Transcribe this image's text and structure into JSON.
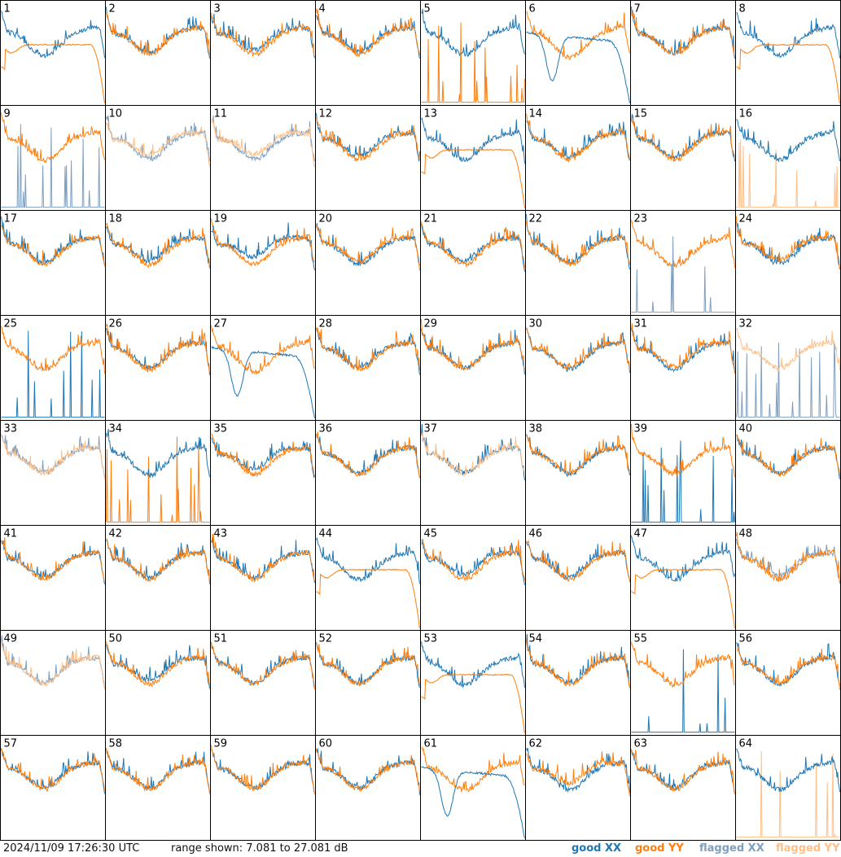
{
  "footer": {
    "timestamp": "2024/11/09 17:26:30 UTC",
    "range_text": "range shown: 7.081 to 27.081 dB",
    "legend": [
      {
        "label": "good XX",
        "color": "#1f77b4"
      },
      {
        "label": "good YY",
        "color": "#ff7f0e"
      },
      {
        "label": "flagged XX",
        "color": "#7f9fbf"
      },
      {
        "label": "flagged YY",
        "color": "#ffbf87"
      }
    ]
  },
  "chart_data": {
    "type": "line",
    "grid_rows": 8,
    "grid_cols": 8,
    "y_range_db": [
      7.081,
      27.081
    ],
    "colors": {
      "good_xx": "#1f77b4",
      "good_yy": "#ff7f0e",
      "flagged_xx": "#7f9fbf",
      "flagged_yy": "#ffbf87"
    },
    "panels": [
      {
        "label": "1",
        "xx": {
          "p": "n",
          "s": "g",
          "b": 0,
          "d": 0.5
        },
        "yy": {
          "p": "d",
          "s": "g",
          "b": 0,
          "d": -0.3
        },
        "top": "y"
      },
      {
        "label": "2",
        "xx": {
          "p": "n",
          "s": "g",
          "b": 0,
          "d": 0
        },
        "yy": {
          "p": "n",
          "s": "g",
          "b": 0,
          "d": 0.2
        },
        "top": "y"
      },
      {
        "label": "3",
        "xx": {
          "p": "n",
          "s": "g",
          "b": 0,
          "d": -0.4
        },
        "yy": {
          "p": "n",
          "s": "g",
          "b": 0,
          "d": 0.2
        },
        "top": "y"
      },
      {
        "label": "4",
        "xx": {
          "p": "n",
          "s": "g",
          "b": 0,
          "d": -0.2
        },
        "yy": {
          "p": "n",
          "s": "g",
          "b": 0,
          "d": 0.2
        },
        "top": "y"
      },
      {
        "label": "5",
        "xx": {
          "p": "n",
          "s": "g",
          "b": 0,
          "d": 0.3
        },
        "yy": {
          "p": "s",
          "s": "g",
          "b": 0,
          "d": 0
        },
        "top": "y"
      },
      {
        "label": "6",
        "xx": {
          "p": "f",
          "s": "g",
          "b": 0,
          "d": 0
        },
        "yy": {
          "p": "n",
          "s": "g",
          "b": 0,
          "d": 0.6
        },
        "top": "x"
      },
      {
        "label": "7",
        "xx": {
          "p": "n",
          "s": "g",
          "b": 0,
          "d": 0
        },
        "yy": {
          "p": "n",
          "s": "g",
          "b": 0,
          "d": 0.2
        },
        "top": "y"
      },
      {
        "label": "8",
        "xx": {
          "p": "n",
          "s": "g",
          "b": 0,
          "d": 0.3
        },
        "yy": {
          "p": "d",
          "s": "g",
          "b": 0,
          "d": 0
        },
        "top": "y"
      },
      {
        "label": "9",
        "xx": {
          "p": "s",
          "s": "f",
          "b": 0,
          "d": 0
        },
        "yy": {
          "p": "n",
          "s": "g",
          "b": 0,
          "d": 0.4
        },
        "top": "y"
      },
      {
        "label": "10",
        "xx": {
          "p": "n",
          "s": "f",
          "b": 0,
          "d": 0.2
        },
        "yy": {
          "p": "n",
          "s": "f",
          "b": 0,
          "d": -0.4
        },
        "top": "y"
      },
      {
        "label": "11",
        "xx": {
          "p": "n",
          "s": "f",
          "b": 0,
          "d": 0.2
        },
        "yy": {
          "p": "n",
          "s": "f",
          "b": 0,
          "d": -0.5
        },
        "top": "y"
      },
      {
        "label": "12",
        "xx": {
          "p": "n",
          "s": "g",
          "b": 0,
          "d": -0.3
        },
        "yy": {
          "p": "n",
          "s": "g",
          "b": 0,
          "d": 0.3
        },
        "top": "y"
      },
      {
        "label": "13",
        "xx": {
          "p": "n",
          "s": "g",
          "b": 0,
          "d": 0.3
        },
        "yy": {
          "p": "d",
          "s": "g",
          "b": 0,
          "d": 0
        },
        "top": "y"
      },
      {
        "label": "14",
        "xx": {
          "p": "n",
          "s": "g",
          "b": 0,
          "d": 0
        },
        "yy": {
          "p": "n",
          "s": "g",
          "b": 0,
          "d": 0.2
        },
        "top": "y"
      },
      {
        "label": "15",
        "xx": {
          "p": "n",
          "s": "g",
          "b": 0,
          "d": 0
        },
        "yy": {
          "p": "n",
          "s": "g",
          "b": 0,
          "d": 0.3
        },
        "top": "y"
      },
      {
        "label": "16",
        "xx": {
          "p": "n",
          "s": "g",
          "b": 0,
          "d": 0.3
        },
        "yy": {
          "p": "s",
          "s": "f",
          "b": 0,
          "d": 0
        },
        "top": "x"
      },
      {
        "label": "17",
        "xx": {
          "p": "n",
          "s": "g",
          "b": 0,
          "d": 0
        },
        "yy": {
          "p": "n",
          "s": "g",
          "b": 0,
          "d": 0.2
        },
        "top": "y"
      },
      {
        "label": "18",
        "xx": {
          "p": "n",
          "s": "g",
          "b": 0,
          "d": -0.3
        },
        "yy": {
          "p": "n",
          "s": "g",
          "b": 0,
          "d": 0.3
        },
        "top": "y"
      },
      {
        "label": "19",
        "xx": {
          "p": "n",
          "s": "g",
          "b": 0,
          "d": -0.9
        },
        "yy": {
          "p": "n",
          "s": "g",
          "b": 0,
          "d": 0.2
        },
        "top": "y"
      },
      {
        "label": "20",
        "xx": {
          "p": "n",
          "s": "g",
          "b": 0,
          "d": 0.2
        },
        "yy": {
          "p": "n",
          "s": "g",
          "b": 0,
          "d": -0.2
        },
        "top": "y"
      },
      {
        "label": "21",
        "xx": {
          "p": "n",
          "s": "g",
          "b": 0,
          "d": -0.3
        },
        "yy": {
          "p": "n",
          "s": "g",
          "b": 0,
          "d": 0.2
        },
        "top": "y"
      },
      {
        "label": "22",
        "xx": {
          "p": "n",
          "s": "g",
          "b": 0,
          "d": 0
        },
        "yy": {
          "p": "n",
          "s": "g",
          "b": 0,
          "d": 0.2
        },
        "top": "y"
      },
      {
        "label": "23",
        "xx": {
          "p": "s",
          "s": "f",
          "b": 0,
          "d": 0
        },
        "yy": {
          "p": "n",
          "s": "g",
          "b": 0,
          "d": 0.5
        },
        "top": "x"
      },
      {
        "label": "24",
        "xx": {
          "p": "n",
          "s": "g",
          "b": 0,
          "d": 0.2
        },
        "yy": {
          "p": "n",
          "s": "g",
          "b": 0,
          "d": -0.4
        },
        "top": "y"
      },
      {
        "label": "25",
        "xx": {
          "p": "s",
          "s": "g",
          "b": 0,
          "d": 0
        },
        "yy": {
          "p": "n",
          "s": "g",
          "b": 0,
          "d": 0.3
        },
        "top": "y"
      },
      {
        "label": "26",
        "xx": {
          "p": "n",
          "s": "g",
          "b": 0,
          "d": 0
        },
        "yy": {
          "p": "n",
          "s": "g",
          "b": 0,
          "d": 0.3
        },
        "top": "y"
      },
      {
        "label": "27",
        "xx": {
          "p": "f",
          "s": "g",
          "b": 0,
          "d": -0.3
        },
        "yy": {
          "p": "n",
          "s": "g",
          "b": 0,
          "d": 0.6
        },
        "top": "y"
      },
      {
        "label": "28",
        "xx": {
          "p": "n",
          "s": "g",
          "b": 0,
          "d": 0
        },
        "yy": {
          "p": "n",
          "s": "g",
          "b": 0,
          "d": 0.2
        },
        "top": "y"
      },
      {
        "label": "29",
        "xx": {
          "p": "n",
          "s": "g",
          "b": 0,
          "d": 0
        },
        "yy": {
          "p": "n",
          "s": "g",
          "b": 0,
          "d": 0.2
        },
        "top": "y"
      },
      {
        "label": "30",
        "xx": {
          "p": "n",
          "s": "g",
          "b": 0,
          "d": 0.2
        },
        "yy": {
          "p": "n",
          "s": "g",
          "b": 0,
          "d": 0
        },
        "top": "y"
      },
      {
        "label": "31",
        "xx": {
          "p": "n",
          "s": "g",
          "b": 0,
          "d": 0.2
        },
        "yy": {
          "p": "n",
          "s": "g",
          "b": 0,
          "d": -0.2
        },
        "top": "y"
      },
      {
        "label": "32",
        "xx": {
          "p": "s",
          "s": "f",
          "b": 0,
          "d": 0
        },
        "yy": {
          "p": "n",
          "s": "f",
          "b": 0,
          "d": 0.1
        },
        "top": "y"
      },
      {
        "label": "33",
        "xx": {
          "p": "n",
          "s": "f",
          "b": 0,
          "d": 0
        },
        "yy": {
          "p": "n",
          "s": "f",
          "b": 0,
          "d": 0.1
        },
        "top": "y"
      },
      {
        "label": "34",
        "xx": {
          "p": "n",
          "s": "g",
          "b": 0,
          "d": 0.3
        },
        "yy": {
          "p": "s",
          "s": "g",
          "b": 0,
          "d": 0
        },
        "top": "x"
      },
      {
        "label": "35",
        "xx": {
          "p": "n",
          "s": "g",
          "b": 0,
          "d": -0.6
        },
        "yy": {
          "p": "n",
          "s": "g",
          "b": 0,
          "d": 0.2
        },
        "top": "y"
      },
      {
        "label": "36",
        "xx": {
          "p": "n",
          "s": "g",
          "b": 0,
          "d": 0
        },
        "yy": {
          "p": "n",
          "s": "g",
          "b": 0,
          "d": 0.2
        },
        "top": "y"
      },
      {
        "label": "37",
        "xx": {
          "p": "n",
          "s": "g",
          "b": 0,
          "d": 0
        },
        "yy": {
          "p": "n",
          "s": "f",
          "b": 0,
          "d": 0.2
        },
        "top": "y"
      },
      {
        "label": "38",
        "xx": {
          "p": "n",
          "s": "g",
          "b": 0,
          "d": 0.2
        },
        "yy": {
          "p": "n",
          "s": "g",
          "b": 0,
          "d": 0
        },
        "top": "y"
      },
      {
        "label": "39",
        "xx": {
          "p": "s",
          "s": "g",
          "b": 0,
          "d": 0
        },
        "yy": {
          "p": "n",
          "s": "g",
          "b": 0,
          "d": 0.2
        },
        "top": "y"
      },
      {
        "label": "40",
        "xx": {
          "p": "n",
          "s": "g",
          "b": 0,
          "d": 0
        },
        "yy": {
          "p": "n",
          "s": "g",
          "b": 0,
          "d": 0.2
        },
        "top": "y"
      },
      {
        "label": "41",
        "xx": {
          "p": "n",
          "s": "g",
          "b": 0,
          "d": 0
        },
        "yy": {
          "p": "n",
          "s": "g",
          "b": 0,
          "d": 0.2
        },
        "top": "y"
      },
      {
        "label": "42",
        "xx": {
          "p": "n",
          "s": "g",
          "b": 0,
          "d": 0
        },
        "yy": {
          "p": "n",
          "s": "g",
          "b": 0,
          "d": 0.2
        },
        "top": "y"
      },
      {
        "label": "43",
        "xx": {
          "p": "n",
          "s": "g",
          "b": 0,
          "d": 0
        },
        "yy": {
          "p": "n",
          "s": "g",
          "b": 0,
          "d": 0.2
        },
        "top": "y"
      },
      {
        "label": "44",
        "xx": {
          "p": "n",
          "s": "g",
          "b": 0,
          "d": 0.3
        },
        "yy": {
          "p": "d",
          "s": "g",
          "b": 0,
          "d": 0
        },
        "top": "y"
      },
      {
        "label": "45",
        "xx": {
          "p": "n",
          "s": "g",
          "b": 0,
          "d": -0.5
        },
        "yy": {
          "p": "n",
          "s": "g",
          "b": 0,
          "d": 0.2
        },
        "top": "y"
      },
      {
        "label": "46",
        "xx": {
          "p": "n",
          "s": "g",
          "b": 0,
          "d": 0
        },
        "yy": {
          "p": "n",
          "s": "g",
          "b": 0,
          "d": 0.2
        },
        "top": "y"
      },
      {
        "label": "47",
        "xx": {
          "p": "n",
          "s": "g",
          "b": 0,
          "d": 0.3
        },
        "yy": {
          "p": "d",
          "s": "g",
          "b": 0,
          "d": 0
        },
        "top": "y"
      },
      {
        "label": "48",
        "xx": {
          "p": "n",
          "s": "f",
          "b": 0,
          "d": -0.3
        },
        "yy": {
          "p": "n",
          "s": "g",
          "b": 0,
          "d": 0.2
        },
        "top": "y"
      },
      {
        "label": "49",
        "xx": {
          "p": "n",
          "s": "f",
          "b": 0,
          "d": 0
        },
        "yy": {
          "p": "n",
          "s": "f",
          "b": 0,
          "d": 0.1
        },
        "top": "y"
      },
      {
        "label": "50",
        "xx": {
          "p": "n",
          "s": "g",
          "b": 0,
          "d": -0.3
        },
        "yy": {
          "p": "n",
          "s": "g",
          "b": 0,
          "d": 0.2
        },
        "top": "y"
      },
      {
        "label": "51",
        "xx": {
          "p": "n",
          "s": "g",
          "b": 0,
          "d": 0
        },
        "yy": {
          "p": "n",
          "s": "g",
          "b": 0,
          "d": 0.2
        },
        "top": "y"
      },
      {
        "label": "52",
        "xx": {
          "p": "n",
          "s": "g",
          "b": 0,
          "d": 0
        },
        "yy": {
          "p": "n",
          "s": "g",
          "b": 0,
          "d": 0.2
        },
        "top": "y"
      },
      {
        "label": "53",
        "xx": {
          "p": "n",
          "s": "g",
          "b": 0,
          "d": 0.3
        },
        "yy": {
          "p": "d",
          "s": "g",
          "b": 0,
          "d": 0
        },
        "top": "y"
      },
      {
        "label": "54",
        "xx": {
          "p": "n",
          "s": "g",
          "b": 0,
          "d": 0
        },
        "yy": {
          "p": "n",
          "s": "g",
          "b": 0,
          "d": 0.2
        },
        "top": "y"
      },
      {
        "label": "55",
        "xx": {
          "p": "s",
          "s": "g",
          "b": 0,
          "d": 0
        },
        "yy": {
          "p": "n",
          "s": "g",
          "b": 0,
          "d": 0.3
        },
        "top": "y"
      },
      {
        "label": "56",
        "xx": {
          "p": "n",
          "s": "g",
          "b": 0,
          "d": 0.2
        },
        "yy": {
          "p": "n",
          "s": "g",
          "b": 0,
          "d": 0
        },
        "top": "y"
      },
      {
        "label": "57",
        "xx": {
          "p": "n",
          "s": "g",
          "b": 0,
          "d": 0
        },
        "yy": {
          "p": "n",
          "s": "g",
          "b": 0,
          "d": 0.2
        },
        "top": "y"
      },
      {
        "label": "58",
        "xx": {
          "p": "n",
          "s": "g",
          "b": 0,
          "d": 0
        },
        "yy": {
          "p": "n",
          "s": "g",
          "b": 0,
          "d": 0.2
        },
        "top": "y"
      },
      {
        "label": "59",
        "xx": {
          "p": "n",
          "s": "g",
          "b": 0,
          "d": 0
        },
        "yy": {
          "p": "n",
          "s": "g",
          "b": 0,
          "d": 0.2
        },
        "top": "y"
      },
      {
        "label": "60",
        "xx": {
          "p": "n",
          "s": "g",
          "b": 0,
          "d": 0
        },
        "yy": {
          "p": "n",
          "s": "g",
          "b": 0,
          "d": 0.2
        },
        "top": "y"
      },
      {
        "label": "61",
        "xx": {
          "p": "f",
          "s": "g",
          "b": 0,
          "d": 0
        },
        "yy": {
          "p": "n",
          "s": "g",
          "b": 0,
          "d": 0.4
        },
        "top": "x"
      },
      {
        "label": "62",
        "xx": {
          "p": "n",
          "s": "g",
          "b": 0,
          "d": 0.3
        },
        "yy": {
          "p": "n",
          "s": "g",
          "b": 0,
          "d": -0.7
        },
        "top": "y"
      },
      {
        "label": "63",
        "xx": {
          "p": "n",
          "s": "g",
          "b": 0,
          "d": 0
        },
        "yy": {
          "p": "n",
          "s": "g",
          "b": 0,
          "d": 0.2
        },
        "top": "y"
      },
      {
        "label": "64",
        "xx": {
          "p": "n",
          "s": "g",
          "b": 0,
          "d": 0.3
        },
        "yy": {
          "p": "s",
          "s": "f",
          "b": 0,
          "d": 0
        },
        "top": "x"
      }
    ]
  }
}
